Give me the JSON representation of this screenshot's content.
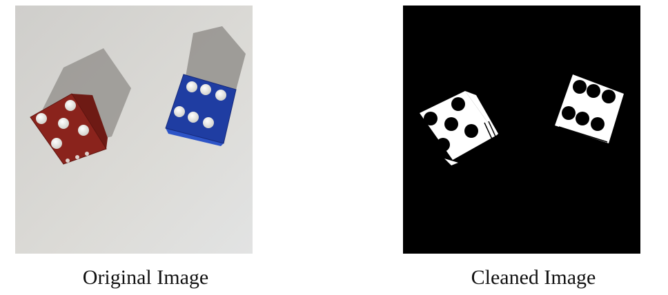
{
  "panels": [
    {
      "caption": "Original Image",
      "colors": {
        "background": "#dad9d4",
        "red_die": "#9b2a22",
        "blue_die": "#1e3ea3",
        "pips": "#f2f2ee"
      },
      "dice": [
        {
          "color_name": "red",
          "top_face_pips": 5
        },
        {
          "color_name": "blue",
          "top_face_pips": 6
        }
      ]
    },
    {
      "caption": "Cleaned Image",
      "colors": {
        "background": "#000000",
        "die": "#ffffff",
        "pips": "#000000"
      },
      "dice": [
        {
          "top_face_pips": 5
        },
        {
          "top_face_pips": 6
        }
      ]
    }
  ]
}
